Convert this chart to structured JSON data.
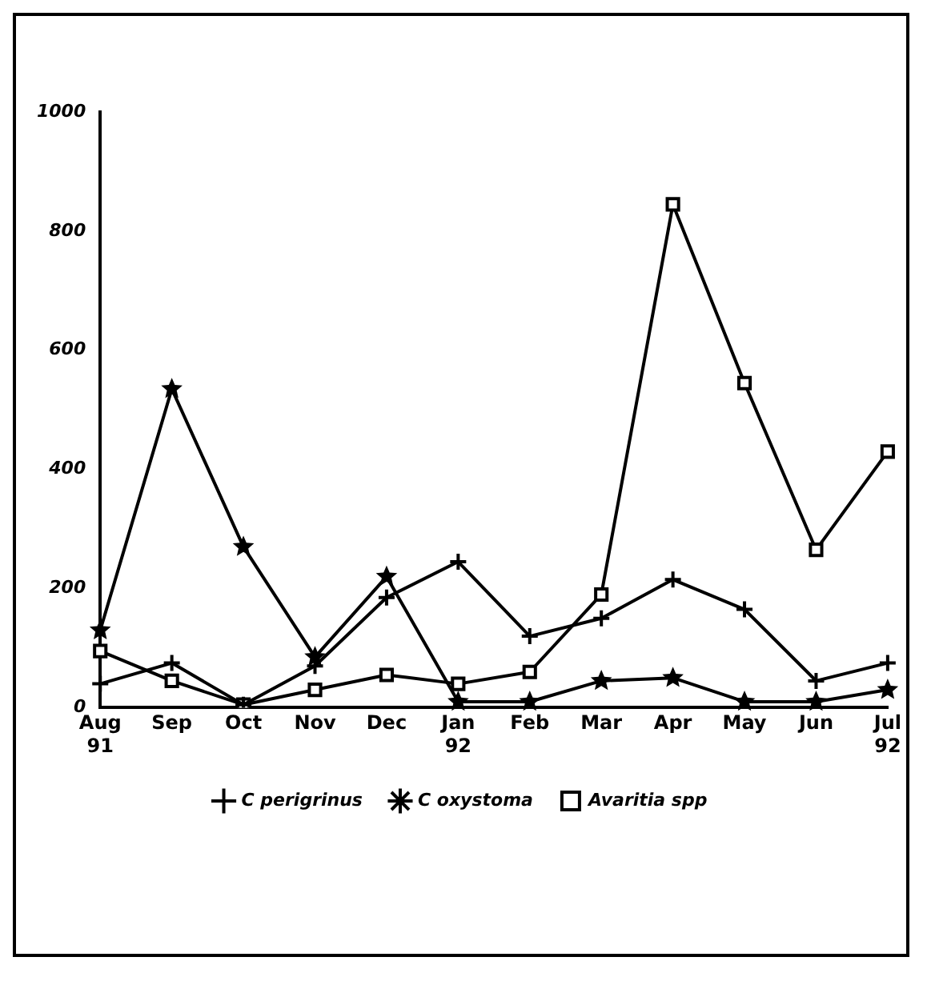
{
  "chart_data": {
    "type": "line",
    "categories": [
      "Aug\n91",
      "Sep",
      "Oct",
      "Nov",
      "Dec",
      "Jan\n92",
      "Feb",
      "Mar",
      "Apr",
      "May",
      "Jun",
      "Jul\n92"
    ],
    "series": [
      {
        "name": "C perigrinus",
        "color": "#000000",
        "marker": "cross",
        "values": [
          40,
          75,
          5,
          70,
          185,
          245,
          120,
          150,
          215,
          165,
          45,
          75
        ]
      },
      {
        "name": "C oxystoma",
        "color": "#000000",
        "marker": "star",
        "values": [
          130,
          535,
          270,
          85,
          220,
          10,
          10,
          45,
          50,
          10,
          10,
          30
        ]
      },
      {
        "name": "Avaritia spp",
        "color": "#000000",
        "marker": "square",
        "values": [
          95,
          45,
          5,
          30,
          55,
          40,
          60,
          190,
          845,
          545,
          265,
          430
        ]
      }
    ],
    "ylim": [
      0,
      1000
    ],
    "yticks": [
      0,
      200,
      400,
      600,
      800,
      1000
    ],
    "grid": false,
    "legend": "bottom",
    "line_style": "solid"
  }
}
